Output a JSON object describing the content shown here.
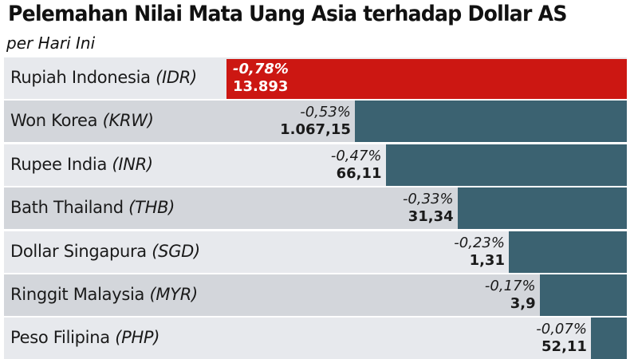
{
  "chart_data": {
    "type": "bar",
    "orientation": "horizontal",
    "title": "Pelemahan Nilai Mata Uang Asia terhadap Dollar AS",
    "subtitle": "per Hari Ini",
    "xlim": [
      0,
      -0.78
    ],
    "categories": [
      {
        "name": "Rupiah Indonesia",
        "code": "(IDR)"
      },
      {
        "name": "Won Korea",
        "code": "(KRW)"
      },
      {
        "name": "Rupee India",
        "code": "(INR)"
      },
      {
        "name": "Bath Thailand",
        "code": "(THB)"
      },
      {
        "name": "Dollar Singapura",
        "code": "(SGD)"
      },
      {
        "name": "Ringgit Malaysia",
        "code": "(MYR)"
      },
      {
        "name": "Peso Filipina",
        "code": "(PHP)"
      }
    ],
    "values": [
      -0.78,
      -0.53,
      -0.47,
      -0.33,
      -0.23,
      -0.17,
      -0.07
    ],
    "percent_labels": [
      "-0,78%",
      "-0,53%",
      "-0,47%",
      "-0,33%",
      "-0,23%",
      "-0,17%",
      "-0,07%"
    ],
    "rate_labels": [
      "13.893",
      "1.067,15",
      "66,11",
      "31,34",
      "1,31",
      "3,9",
      "52,11"
    ],
    "colors": {
      "highlight": "#cc1712",
      "bar": "#3b6271",
      "row_bg_odd": "#e7e9ed",
      "row_bg_even": "#d3d6db",
      "text": "#1a1a1a"
    }
  }
}
